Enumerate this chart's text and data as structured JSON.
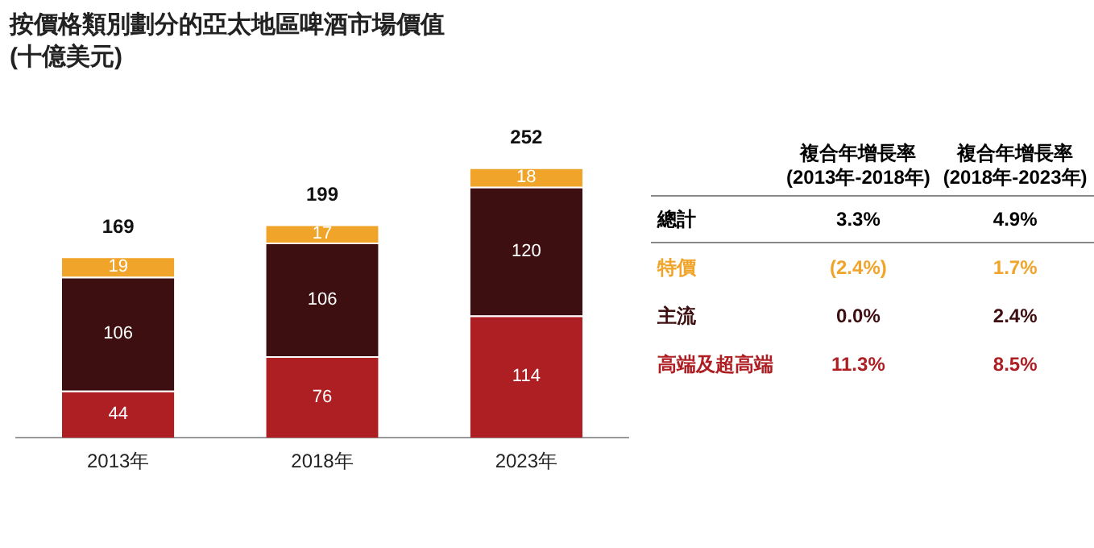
{
  "chart_data": {
    "type": "bar",
    "title": "按價格類別劃分的亞太地區啤酒市場價值\n(十億美元)",
    "categories": [
      "2013年",
      "2018年",
      "2023年"
    ],
    "stacked": true,
    "data_labels": true,
    "totals": [
      "169",
      "199",
      "252"
    ],
    "legend": "right",
    "series": [
      {
        "name": "高端及超高端",
        "color": "#ae1f24",
        "values": [
          44,
          76,
          114
        ]
      },
      {
        "name": "主流",
        "color": "#3e0f10",
        "values": [
          106,
          106,
          120
        ]
      },
      {
        "name": "特價",
        "color": "#f0a42a",
        "values": [
          19,
          17,
          18
        ]
      }
    ],
    "annotations": [
      "複合年增長率\n(2013年-2018年)",
      "複合年增長率\n(2018年-2023年)",
      "總計",
      "3.3%",
      "4.9%",
      "11.3%",
      "8.5%",
      "0.0%",
      "2.4%",
      "(2.4%)",
      "1.7%"
    ]
  }
}
